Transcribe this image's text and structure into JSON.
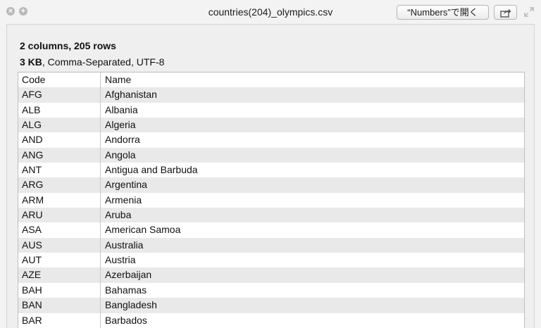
{
  "window": {
    "title": "countries(204)_olympics.csv",
    "open_button_label": "“Numbers”で開く"
  },
  "info": {
    "columns_rows": "2 columns, 205 rows",
    "size": "3 KB",
    "format": ", Comma-Separated, UTF-8"
  },
  "table": {
    "headers": [
      "Code",
      "Name"
    ],
    "rows": [
      [
        "AFG",
        "Afghanistan"
      ],
      [
        "ALB",
        "Albania"
      ],
      [
        "ALG",
        "Algeria"
      ],
      [
        "AND",
        "Andorra"
      ],
      [
        "ANG",
        "Angola"
      ],
      [
        "ANT",
        "Antigua and Barbuda"
      ],
      [
        "ARG",
        "Argentina"
      ],
      [
        "ARM",
        "Armenia"
      ],
      [
        "ARU",
        "Aruba"
      ],
      [
        "ASA",
        "American Samoa"
      ],
      [
        "AUS",
        "Australia"
      ],
      [
        "AUT",
        "Austria"
      ],
      [
        "AZE",
        "Azerbaijan"
      ],
      [
        "BAH",
        "Bahamas"
      ],
      [
        "BAN",
        "Bangladesh"
      ],
      [
        "BAR",
        "Barbados"
      ]
    ]
  },
  "icons": {
    "close": "close-icon",
    "zoom": "zoom-icon",
    "share": "share-icon",
    "fullscreen": "fullscreen-icon"
  },
  "colors": {
    "row_alt": "#e9e9e9",
    "window_bg": "#f3f3f3"
  }
}
